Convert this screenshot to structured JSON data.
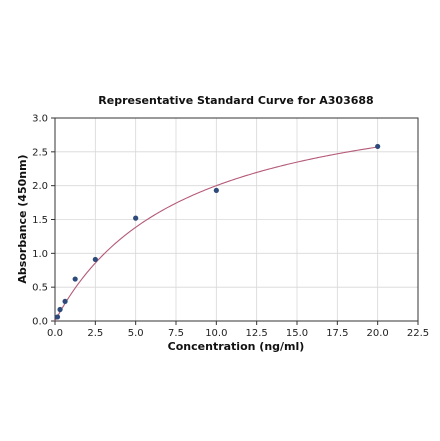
{
  "chart_data": {
    "type": "scatter",
    "title": "Representative Standard Curve for A303688",
    "xlabel": "Concentration (ng/ml)",
    "ylabel": "Absorbance (450nm)",
    "xlim": [
      0,
      22.5
    ],
    "ylim": [
      0,
      3.0
    ],
    "xticks": [
      0.0,
      2.5,
      5.0,
      7.5,
      10.0,
      12.5,
      15.0,
      17.5,
      20.0,
      22.5
    ],
    "xtick_labels": [
      "0.0",
      "2.5",
      "5.0",
      "7.5",
      "10.0",
      "12.5",
      "15.0",
      "17.5",
      "20.0",
      "22.5"
    ],
    "yticks": [
      0.0,
      0.5,
      1.0,
      1.5,
      2.0,
      2.5,
      3.0
    ],
    "ytick_labels": [
      "0.0",
      "0.5",
      "1.0",
      "1.5",
      "2.0",
      "2.5",
      "3.0"
    ],
    "grid": true,
    "series": [
      {
        "points": [
          {
            "x": 0.156,
            "y": 0.06
          },
          {
            "x": 0.313,
            "y": 0.17
          },
          {
            "x": 0.625,
            "y": 0.29
          },
          {
            "x": 1.25,
            "y": 0.62
          },
          {
            "x": 2.5,
            "y": 0.91
          },
          {
            "x": 5.0,
            "y": 1.52
          },
          {
            "x": 10.0,
            "y": 1.93
          },
          {
            "x": 20.0,
            "y": 2.58
          }
        ],
        "marker_color": "#2e4a7a"
      }
    ],
    "fit_curve": {
      "model": "hyperbolic",
      "ymax": 3.6,
      "k": 8.0,
      "color": "#b45a78"
    }
  }
}
